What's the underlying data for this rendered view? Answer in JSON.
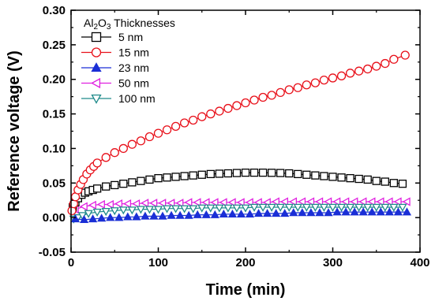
{
  "chart_data": {
    "type": "scatter",
    "xlabel": "Time (min)",
    "ylabel": "Reference voltage (V)",
    "xlim": [
      0,
      400
    ],
    "ylim": [
      -0.05,
      0.3
    ],
    "xticks": [
      "0",
      "100",
      "200",
      "300",
      "400"
    ],
    "yticks": [
      "-0.05",
      "0.00",
      "0.05",
      "0.10",
      "0.15",
      "0.20",
      "0.25",
      "0.30"
    ],
    "legend_title": {
      "pre": "Al",
      "sub1": "2",
      "mid": "O",
      "sub2": "3",
      "post": " Thicknesses"
    },
    "legend_position": "top-left",
    "series": [
      {
        "name": "5 nm",
        "marker": "square",
        "filled": false,
        "color": "#000000",
        "x": [
          2,
          5,
          8,
          12,
          16,
          20,
          25,
          30,
          40,
          50,
          60,
          70,
          80,
          90,
          100,
          110,
          120,
          130,
          140,
          150,
          160,
          170,
          180,
          190,
          200,
          210,
          220,
          230,
          240,
          250,
          260,
          270,
          280,
          290,
          300,
          310,
          320,
          330,
          340,
          350,
          360,
          370,
          380
        ],
        "y": [
          0.015,
          0.022,
          0.028,
          0.033,
          0.036,
          0.038,
          0.04,
          0.042,
          0.045,
          0.047,
          0.049,
          0.051,
          0.053,
          0.055,
          0.057,
          0.058,
          0.059,
          0.06,
          0.061,
          0.062,
          0.063,
          0.0635,
          0.064,
          0.0645,
          0.065,
          0.065,
          0.065,
          0.0648,
          0.0645,
          0.064,
          0.063,
          0.062,
          0.061,
          0.06,
          0.059,
          0.058,
          0.057,
          0.056,
          0.055,
          0.053,
          0.052,
          0.05,
          0.049
        ]
      },
      {
        "name": "15 nm",
        "marker": "circle",
        "filled": false,
        "color": "#e8101a",
        "x": [
          1,
          3,
          5,
          8,
          11,
          14,
          18,
          22,
          26,
          30,
          40,
          50,
          60,
          70,
          80,
          90,
          100,
          110,
          120,
          130,
          140,
          150,
          160,
          170,
          180,
          190,
          200,
          210,
          220,
          230,
          240,
          250,
          260,
          270,
          280,
          290,
          300,
          310,
          320,
          330,
          340,
          350,
          360,
          370,
          383
        ],
        "y": [
          0.01,
          0.02,
          0.03,
          0.04,
          0.048,
          0.055,
          0.063,
          0.069,
          0.074,
          0.079,
          0.087,
          0.094,
          0.1,
          0.106,
          0.111,
          0.117,
          0.122,
          0.127,
          0.132,
          0.137,
          0.141,
          0.146,
          0.15,
          0.154,
          0.158,
          0.162,
          0.166,
          0.17,
          0.174,
          0.177,
          0.181,
          0.185,
          0.188,
          0.192,
          0.195,
          0.199,
          0.202,
          0.205,
          0.209,
          0.212,
          0.215,
          0.219,
          0.223,
          0.229,
          0.235
        ]
      },
      {
        "name": "23 nm",
        "marker": "triangle-up",
        "filled": true,
        "color": "#1a2fd6",
        "x": [
          5,
          15,
          25,
          35,
          45,
          55,
          65,
          75,
          85,
          95,
          105,
          115,
          125,
          135,
          145,
          155,
          165,
          175,
          185,
          195,
          205,
          215,
          225,
          235,
          245,
          255,
          265,
          275,
          285,
          295,
          305,
          315,
          325,
          335,
          345,
          355,
          365,
          375,
          385
        ],
        "y": [
          -0.002,
          -0.003,
          -0.002,
          -0.001,
          0.0,
          0.0,
          0.001,
          0.001,
          0.002,
          0.002,
          0.002,
          0.003,
          0.003,
          0.003,
          0.004,
          0.004,
          0.004,
          0.005,
          0.005,
          0.005,
          0.005,
          0.006,
          0.006,
          0.006,
          0.006,
          0.007,
          0.007,
          0.007,
          0.007,
          0.007,
          0.008,
          0.008,
          0.008,
          0.008,
          0.008,
          0.008,
          0.008,
          0.008,
          0.008
        ]
      },
      {
        "name": "50 nm",
        "marker": "triangle-left",
        "filled": false,
        "color": "#e020e0",
        "x": [
          5,
          15,
          25,
          35,
          45,
          55,
          65,
          75,
          85,
          95,
          105,
          115,
          125,
          135,
          145,
          155,
          165,
          175,
          185,
          195,
          205,
          215,
          225,
          235,
          245,
          255,
          265,
          275,
          285,
          295,
          305,
          315,
          325,
          335,
          345,
          355,
          365,
          375,
          385
        ],
        "y": [
          0.012,
          0.016,
          0.018,
          0.019,
          0.019,
          0.02,
          0.02,
          0.02,
          0.021,
          0.021,
          0.021,
          0.021,
          0.021,
          0.022,
          0.022,
          0.022,
          0.022,
          0.022,
          0.022,
          0.022,
          0.022,
          0.022,
          0.022,
          0.023,
          0.023,
          0.023,
          0.023,
          0.023,
          0.023,
          0.023,
          0.023,
          0.023,
          0.023,
          0.023,
          0.023,
          0.023,
          0.023,
          0.023,
          0.023
        ]
      },
      {
        "name": "100 nm",
        "marker": "triangle-down",
        "filled": false,
        "color": "#1f8a8a",
        "x": [
          3,
          8,
          13,
          20,
          30,
          40,
          50,
          60,
          70,
          80,
          90,
          100,
          110,
          120,
          130,
          140,
          150,
          160,
          170,
          180,
          190,
          200,
          210,
          220,
          230,
          240,
          250,
          260,
          270,
          280,
          290,
          300,
          310,
          320,
          330,
          340,
          350,
          360,
          370,
          380
        ],
        "y": [
          -0.002,
          0.0,
          0.003,
          0.006,
          0.008,
          0.009,
          0.01,
          0.011,
          0.011,
          0.012,
          0.012,
          0.012,
          0.013,
          0.013,
          0.013,
          0.013,
          0.014,
          0.014,
          0.014,
          0.014,
          0.014,
          0.014,
          0.015,
          0.015,
          0.015,
          0.015,
          0.015,
          0.015,
          0.015,
          0.015,
          0.015,
          0.015,
          0.015,
          0.015,
          0.015,
          0.015,
          0.015,
          0.015,
          0.015,
          0.015
        ]
      }
    ]
  }
}
